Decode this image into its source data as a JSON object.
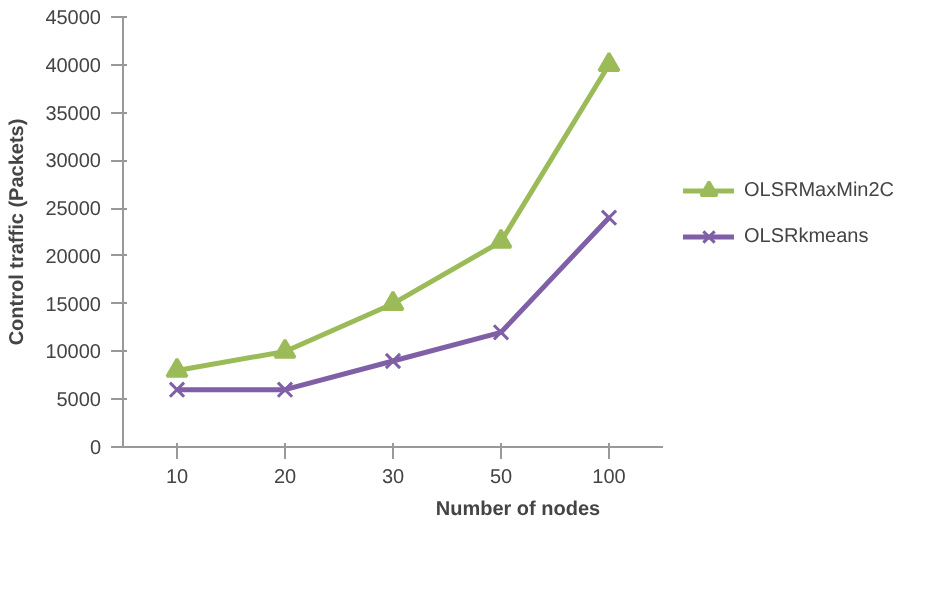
{
  "chart_data": {
    "type": "line",
    "xlabel": "Number of nodes",
    "ylabel": "Control traffic (Packets)",
    "categories": [
      "10",
      "20",
      "30",
      "50",
      "100"
    ],
    "series": [
      {
        "name": "OLSRMaxMin2C",
        "color": "#9bbb59",
        "marker": "triangle",
        "values": [
          8000,
          10000,
          15000,
          21500,
          40000
        ]
      },
      {
        "name": "OLSRkmeans",
        "color": "#7f5fa6",
        "marker": "cross",
        "values": [
          6000,
          6000,
          9000,
          12000,
          24000
        ]
      }
    ],
    "ylim": [
      0,
      45000
    ],
    "yticks": [
      0,
      5000,
      10000,
      15000,
      20000,
      25000,
      30000,
      35000,
      40000,
      45000
    ],
    "legend": "right",
    "line_style": "solid"
  }
}
